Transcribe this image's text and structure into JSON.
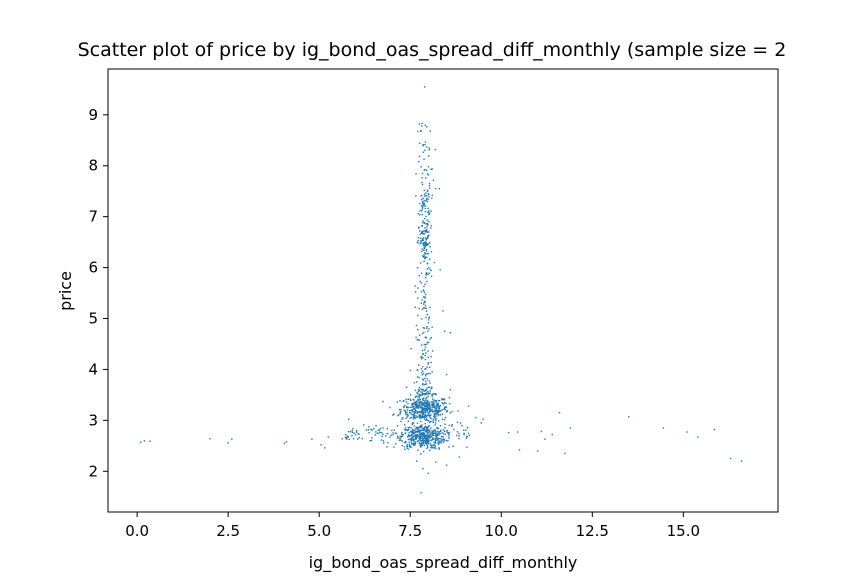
{
  "chart_data": {
    "type": "scatter",
    "title": "Scatter plot of price by ig_bond_oas_spread_diff_monthly (sample size = 2",
    "xlabel": "ig_bond_oas_spread_diff_monthly",
    "ylabel": "price",
    "xlim": [
      -0.8,
      17.6
    ],
    "ylim": [
      1.2,
      9.9
    ],
    "xticks": [
      0.0,
      2.5,
      5.0,
      7.5,
      10.0,
      12.5,
      15.0
    ],
    "xtick_labels": [
      "0.0",
      "2.5",
      "5.0",
      "7.5",
      "10.0",
      "12.5",
      "15.0"
    ],
    "yticks": [
      2,
      3,
      4,
      5,
      6,
      7,
      8,
      9
    ],
    "ytick_labels": [
      "2",
      "3",
      "4",
      "5",
      "6",
      "7",
      "8",
      "9"
    ],
    "grid": false,
    "marker_color": "#1f77b4",
    "clusters": [
      {
        "center": [
          7.9,
          3.22
        ],
        "spread": [
          0.33,
          0.13
        ],
        "count": 450
      },
      {
        "center": [
          7.85,
          2.68
        ],
        "spread": [
          0.3,
          0.12
        ],
        "count": 380
      },
      {
        "center": [
          7.9,
          6.5
        ],
        "spread": [
          0.08,
          0.2
        ],
        "count": 70
      },
      {
        "center": [
          7.9,
          7.25
        ],
        "spread": [
          0.08,
          0.15
        ],
        "count": 40
      }
    ],
    "vertical_band": {
      "x_center": 7.9,
      "x_spread": 0.12,
      "y_range": [
        3.5,
        8.9
      ],
      "count": 280
    },
    "horizontal_band": {
      "x_range": [
        5.6,
        9.2
      ],
      "y_center": 2.72,
      "y_spread": 0.12,
      "count": 140
    },
    "outliers": [
      [
        0.1,
        2.57
      ],
      [
        0.2,
        2.6
      ],
      [
        0.35,
        2.59
      ],
      [
        2.0,
        2.64
      ],
      [
        2.5,
        2.56
      ],
      [
        2.6,
        2.63
      ],
      [
        4.05,
        2.55
      ],
      [
        4.1,
        2.58
      ],
      [
        4.8,
        2.63
      ],
      [
        5.05,
        2.52
      ],
      [
        5.15,
        2.46
      ],
      [
        5.25,
        2.67
      ],
      [
        5.9,
        2.7
      ],
      [
        6.0,
        2.72
      ],
      [
        6.1,
        2.66
      ],
      [
        6.4,
        2.6
      ],
      [
        7.8,
        1.58
      ],
      [
        7.85,
        2.05
      ],
      [
        8.0,
        1.96
      ],
      [
        8.2,
        2.18
      ],
      [
        8.5,
        2.12
      ],
      [
        8.85,
        2.28
      ],
      [
        9.1,
        3.28
      ],
      [
        9.3,
        3.05
      ],
      [
        9.5,
        3.02
      ],
      [
        9.45,
        2.95
      ],
      [
        10.2,
        2.76
      ],
      [
        10.45,
        2.77
      ],
      [
        10.5,
        2.42
      ],
      [
        11.0,
        2.4
      ],
      [
        11.1,
        2.78
      ],
      [
        11.2,
        2.63
      ],
      [
        11.4,
        2.72
      ],
      [
        11.6,
        3.15
      ],
      [
        11.75,
        2.35
      ],
      [
        11.9,
        2.85
      ],
      [
        13.5,
        3.07
      ],
      [
        14.45,
        2.85
      ],
      [
        15.1,
        2.77
      ],
      [
        15.4,
        2.67
      ],
      [
        15.85,
        2.82
      ],
      [
        16.3,
        2.25
      ],
      [
        16.6,
        2.2
      ],
      [
        7.9,
        9.55
      ],
      [
        7.75,
        8.82
      ],
      [
        8.05,
        8.68
      ],
      [
        8.3,
        7.55
      ],
      [
        8.2,
        7.55
      ],
      [
        8.4,
        5.15
      ],
      [
        8.45,
        4.75
      ],
      [
        8.6,
        4.72
      ],
      [
        8.5,
        3.9
      ],
      [
        8.6,
        3.6
      ],
      [
        7.5,
        3.98
      ],
      [
        7.4,
        3.65
      ]
    ]
  }
}
